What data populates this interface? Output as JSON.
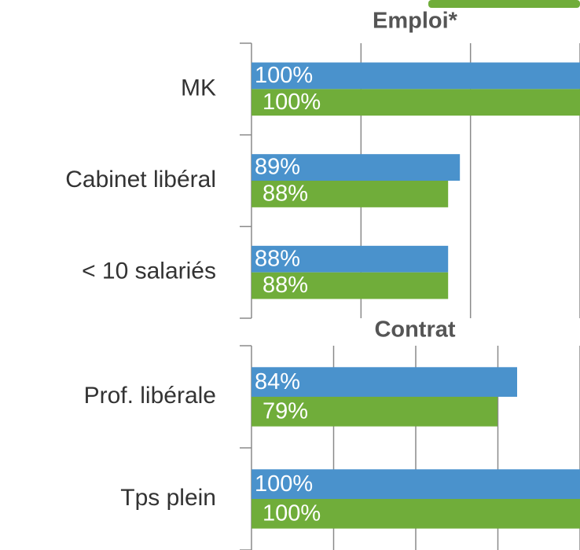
{
  "chart_data": [
    {
      "type": "barh",
      "title": "Emploi*",
      "categories": [
        "MK",
        "Cabinet libéral",
        "< 10 salariés"
      ],
      "series": [
        {
          "color": "#4a92cc",
          "values": [
            100,
            89,
            88
          ],
          "value_labels": [
            "100%",
            "89%",
            "88%"
          ]
        },
        {
          "color": "#70ad3a",
          "values": [
            100,
            88,
            88
          ],
          "value_labels": [
            "100%",
            "88%",
            "88%"
          ]
        }
      ],
      "xlim": [
        71.3,
        99.2
      ],
      "grid": true
    },
    {
      "type": "barh",
      "title": "Contrat",
      "categories": [
        "Prof. libérale",
        "Tps plein"
      ],
      "series": [
        {
          "color": "#4a92cc",
          "values": [
            84,
            100
          ],
          "value_labels": [
            "84%",
            "100%"
          ]
        },
        {
          "color": "#70ad3a",
          "values": [
            79,
            100
          ],
          "value_labels": [
            "79%",
            "100%"
          ]
        }
      ],
      "xlim": [
        16.4,
        100
      ],
      "grid": true
    }
  ]
}
